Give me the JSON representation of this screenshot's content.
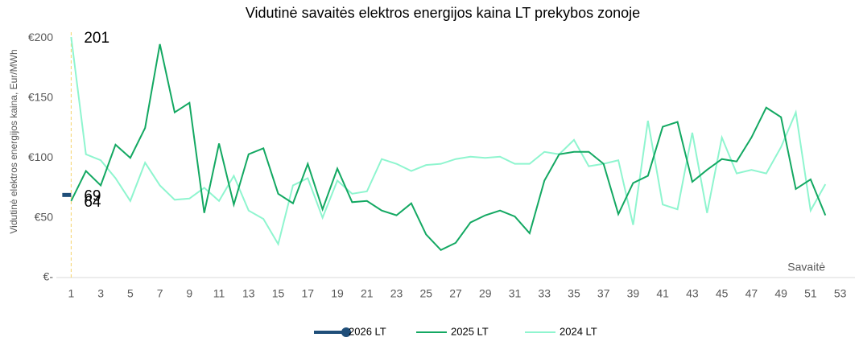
{
  "chart_data": {
    "type": "line",
    "title": "Vidutinė savaitės elektros energijos kaina LT prekybos zonoje",
    "y_label": "Vidutinė elektros energijos kaina, Eur/MWh",
    "x_label": "Savaitė",
    "x": [
      1,
      2,
      3,
      4,
      5,
      6,
      7,
      8,
      9,
      10,
      11,
      12,
      13,
      14,
      15,
      16,
      17,
      18,
      19,
      20,
      21,
      22,
      23,
      24,
      25,
      26,
      27,
      28,
      29,
      30,
      31,
      32,
      33,
      34,
      35,
      36,
      37,
      38,
      39,
      40,
      41,
      42,
      43,
      44,
      45,
      46,
      47,
      48,
      49,
      50,
      51,
      52
    ],
    "xlim": [
      0,
      54
    ],
    "xticks": [
      1,
      3,
      5,
      7,
      9,
      11,
      13,
      15,
      17,
      19,
      21,
      23,
      25,
      27,
      29,
      31,
      33,
      35,
      37,
      39,
      41,
      43,
      45,
      47,
      49,
      51,
      53
    ],
    "ylim": [
      0,
      205
    ],
    "yticks": [
      {
        "value": 0,
        "label": "€-"
      },
      {
        "value": 50,
        "label": "€50"
      },
      {
        "value": 100,
        "label": "€100"
      },
      {
        "value": 150,
        "label": "€150"
      },
      {
        "value": 200,
        "label": "€200"
      }
    ],
    "grid": false,
    "label_first": true,
    "legend": "bottom",
    "series": [
      {
        "name": "2026 LT",
        "color": "#1f4e79",
        "values": [
          69,
          null,
          null,
          null,
          null,
          null,
          null,
          null,
          null,
          null,
          null,
          null,
          null,
          null,
          null,
          null,
          null,
          null,
          null,
          null,
          null,
          null,
          null,
          null,
          null,
          null,
          null,
          null,
          null,
          null,
          null,
          null,
          null,
          null,
          null,
          null,
          null,
          null,
          null,
          null,
          null,
          null,
          null,
          null,
          null,
          null,
          null,
          null,
          null,
          null,
          null,
          null
        ]
      },
      {
        "name": "2025 LT",
        "color": "#13a862",
        "values": [
          64,
          89,
          77,
          111,
          100,
          125,
          195,
          138,
          146,
          54,
          112,
          61,
          103,
          108,
          70,
          62,
          95,
          57,
          91,
          63,
          64,
          56,
          52,
          62,
          36,
          23,
          29,
          46,
          52,
          56,
          51,
          37,
          81,
          103,
          105,
          105,
          95,
          53,
          79,
          85,
          126,
          130,
          80,
          90,
          99,
          97,
          117,
          142,
          134,
          74,
          82,
          52
        ]
      },
      {
        "name": "2024 LT",
        "color": "#8ff5cf",
        "values": [
          201,
          103,
          98,
          83,
          64,
          96,
          77,
          65,
          66,
          75,
          64,
          85,
          56,
          49,
          28,
          77,
          83,
          50,
          81,
          70,
          72,
          99,
          95,
          89,
          94,
          95,
          99,
          101,
          100,
          101,
          95,
          95,
          105,
          103,
          115,
          93,
          95,
          98,
          44,
          131,
          61,
          57,
          121,
          54,
          117,
          87,
          90,
          87,
          109,
          138,
          56,
          78
        ]
      }
    ]
  }
}
